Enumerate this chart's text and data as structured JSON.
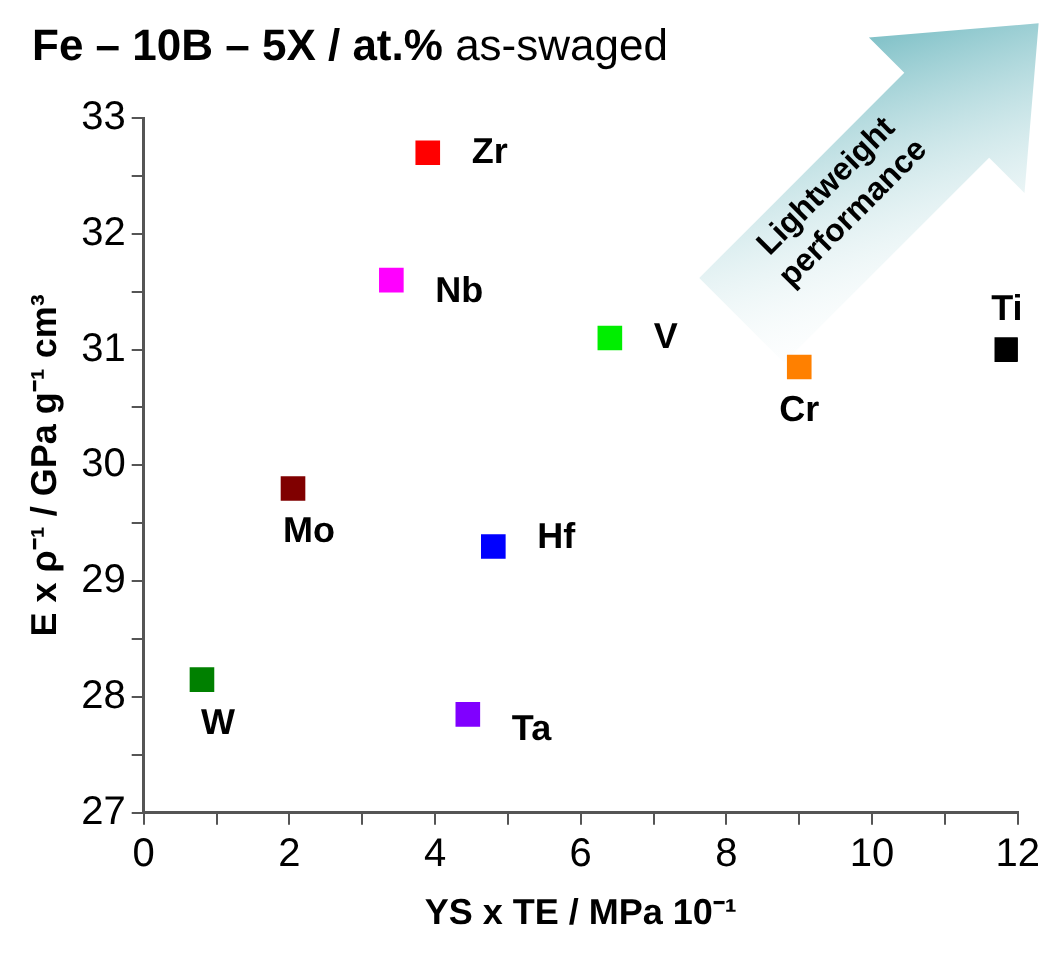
{
  "chart_data": {
    "type": "scatter",
    "title": "Fe – 10B – 5X / at.%",
    "subtitle": "as-swaged",
    "xlabel": "YS x TE / MPa 10⁻¹",
    "ylabel": "E x ρ⁻¹ / GPa g⁻¹ cm³",
    "xlim": [
      0,
      12
    ],
    "ylim": [
      27,
      33
    ],
    "xticks": [
      0,
      {
        "value": 1,
        "label": null
      },
      2,
      {
        "value": 3,
        "label": null
      },
      4,
      {
        "value": 5,
        "label": null
      },
      6,
      {
        "value": 7,
        "label": null
      },
      8,
      {
        "value": 9,
        "label": null
      },
      10,
      {
        "value": 11,
        "label": null
      },
      12
    ],
    "yticks": [
      27,
      {
        "value": 27.5,
        "label": null
      },
      28,
      {
        "value": 28.5,
        "label": null
      },
      29,
      {
        "value": 29.5,
        "label": null
      },
      30,
      {
        "value": 30.5,
        "label": null
      },
      31,
      {
        "value": 31.5,
        "label": null
      },
      32,
      {
        "value": 32.5,
        "label": null
      },
      33
    ],
    "grid": false,
    "legend": false,
    "marker": "square",
    "annotations": [
      "Lightweight performance"
    ],
    "series": [
      {
        "name": "Zr",
        "color": "#ff0000",
        "x": [
          3.9
        ],
        "values": [
          32.7
        ]
      },
      {
        "name": "Nb",
        "color": "#ff00ff",
        "x": [
          3.4
        ],
        "values": [
          31.6
        ]
      },
      {
        "name": "V",
        "color": "#00ee00",
        "x": [
          6.4
        ],
        "values": [
          31.1
        ]
      },
      {
        "name": "Cr",
        "color": "#ff8000",
        "x": [
          9.0
        ],
        "values": [
          30.85
        ]
      },
      {
        "name": "Ti",
        "color": "#000000",
        "x": [
          11.85
        ],
        "values": [
          31.0
        ]
      },
      {
        "name": "Mo",
        "color": "#800000",
        "x": [
          2.05
        ],
        "values": [
          29.8
        ]
      },
      {
        "name": "Hf",
        "color": "#0000ff",
        "x": [
          4.8
        ],
        "values": [
          29.3
        ]
      },
      {
        "name": "W",
        "color": "#008000",
        "x": [
          0.8
        ],
        "values": [
          28.15
        ]
      },
      {
        "name": "Ta",
        "color": "#8000ff",
        "x": [
          4.45
        ],
        "values": [
          27.85
        ]
      }
    ]
  }
}
